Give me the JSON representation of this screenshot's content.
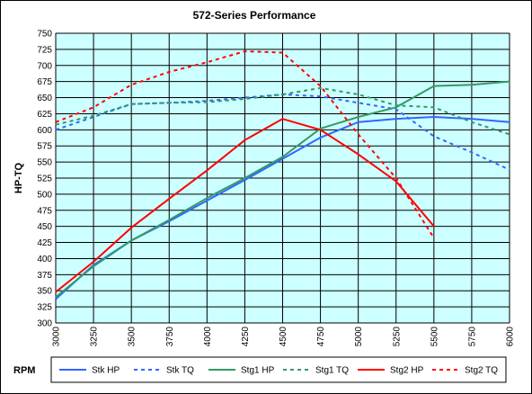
{
  "chart_data": {
    "type": "line",
    "title": "572-Series Performance",
    "xlabel": "RPM",
    "ylabel": "HP-TQ",
    "xlim": [
      3000,
      6000
    ],
    "ylim": [
      300,
      750
    ],
    "x_ticks": [
      "3000",
      "3250",
      "3500",
      "3750",
      "4000",
      "4250",
      "4500",
      "4750",
      "5000",
      "5250",
      "5500",
      "5750",
      "6000"
    ],
    "y_ticks": [
      "300",
      "325",
      "350",
      "375",
      "400",
      "425",
      "450",
      "475",
      "500",
      "525",
      "550",
      "575",
      "600",
      "625",
      "650",
      "675",
      "700",
      "725",
      "750"
    ],
    "x": [
      3000,
      3250,
      3500,
      3750,
      4000,
      4250,
      4500,
      4750,
      5000,
      5250,
      5500,
      5750,
      6000
    ],
    "grid": true,
    "plot_background": "#ccffff",
    "legend_position": "bottom",
    "series": [
      {
        "name": "Stk HP",
        "color": "#3366ff",
        "dash": "solid",
        "values": [
          337,
          390,
          428,
          458,
          490,
          522,
          555,
          588,
          612,
          617,
          620,
          617,
          612
        ]
      },
      {
        "name": "Stk TQ",
        "color": "#3366ff",
        "dash": "dashed",
        "values": [
          600,
          620,
          640,
          642,
          645,
          650,
          655,
          652,
          642,
          632,
          590,
          565,
          538
        ]
      },
      {
        "name": "Stg1 HP",
        "color": "#339966",
        "dash": "solid",
        "values": [
          340,
          388,
          428,
          460,
          494,
          525,
          558,
          602,
          620,
          635,
          668,
          670,
          675
        ]
      },
      {
        "name": "Stg1 TQ",
        "color": "#339966",
        "dash": "dashed",
        "values": [
          608,
          622,
          640,
          642,
          643,
          648,
          655,
          665,
          655,
          638,
          635,
          612,
          593
        ]
      },
      {
        "name": "Stg2 HP",
        "color": "#ff0000",
        "dash": "solid",
        "values": [
          348,
          395,
          448,
          493,
          537,
          584,
          617,
          600,
          562,
          520,
          450,
          null,
          null
        ]
      },
      {
        "name": "Stg2 TQ",
        "color": "#ff0000",
        "dash": "dashed",
        "values": [
          612,
          635,
          670,
          690,
          705,
          722,
          720,
          668,
          593,
          525,
          432,
          null,
          null
        ]
      }
    ]
  }
}
